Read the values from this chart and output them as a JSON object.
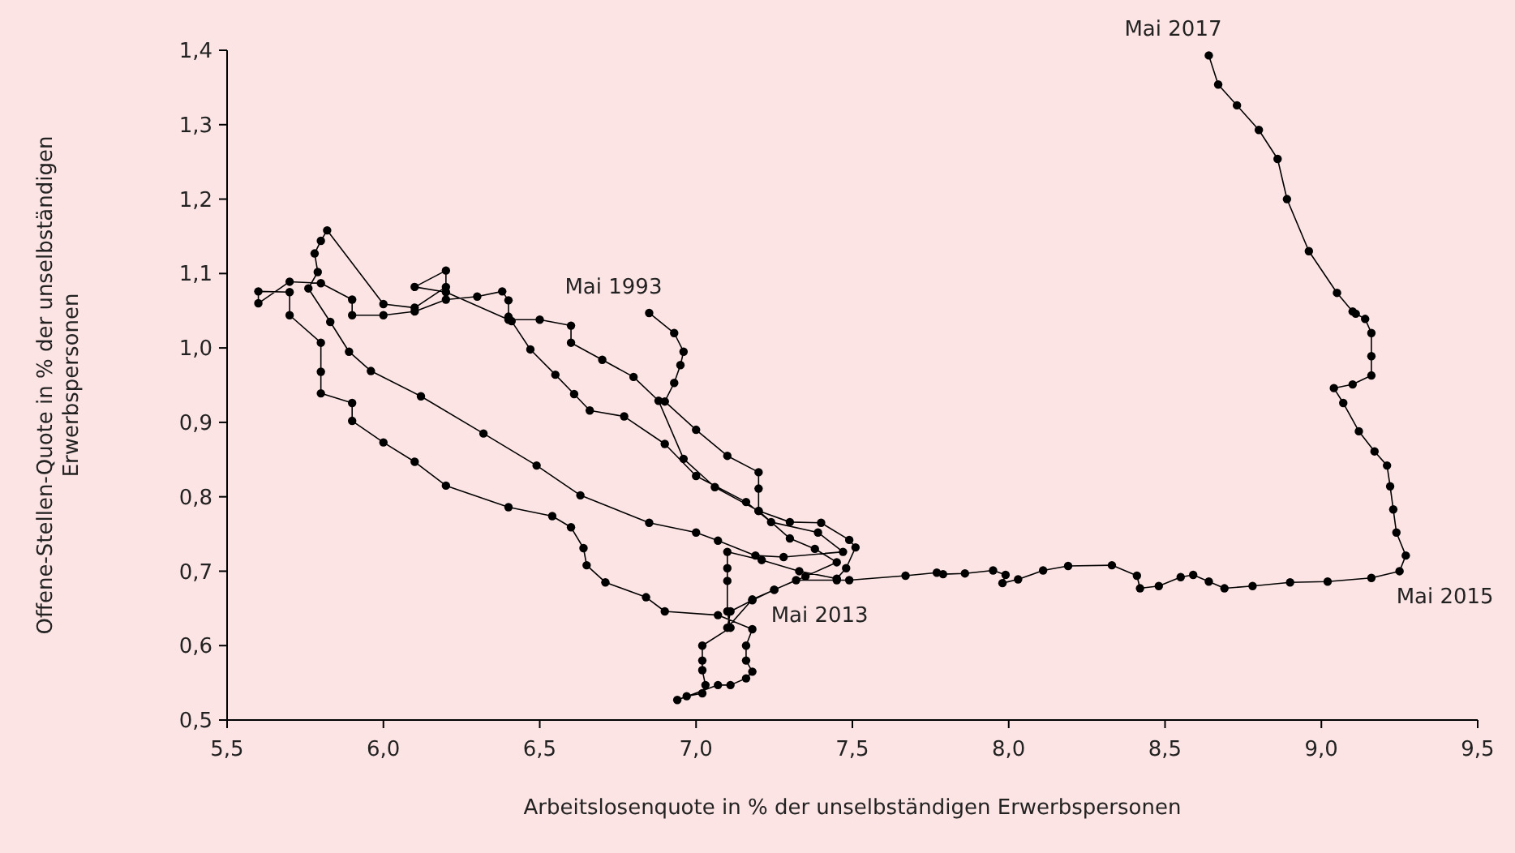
{
  "chart_data": {
    "type": "line",
    "marker": "circle",
    "line_style": "solid",
    "grid": false,
    "xlabel": "Arbeitslosenquote in % der unselbständigen Erwerbspersonen",
    "ylabel": "Offene-Stellen-Quote in % der unselbständigen Erwerbspersonen",
    "xlim": [
      5.5,
      9.5
    ],
    "ylim": [
      0.5,
      1.4
    ],
    "xticks": [
      {
        "value": 5.5,
        "label": "5,5"
      },
      {
        "value": 6.0,
        "label": "6,0"
      },
      {
        "value": 6.5,
        "label": "6,5"
      },
      {
        "value": 7.0,
        "label": "7,0"
      },
      {
        "value": 7.5,
        "label": "7,5"
      },
      {
        "value": 8.0,
        "label": "8,0"
      },
      {
        "value": 8.5,
        "label": "8,5"
      },
      {
        "value": 9.0,
        "label": "9,0"
      },
      {
        "value": 9.5,
        "label": "9,5"
      }
    ],
    "yticks": [
      {
        "value": 0.5,
        "label": "0,5"
      },
      {
        "value": 0.6,
        "label": "0,6"
      },
      {
        "value": 0.7,
        "label": "0,7"
      },
      {
        "value": 0.8,
        "label": "0,8"
      },
      {
        "value": 0.9,
        "label": "0,9"
      },
      {
        "value": 1.0,
        "label": "1,0"
      },
      {
        "value": 1.1,
        "label": "1,1"
      },
      {
        "value": 1.2,
        "label": "1,2"
      },
      {
        "value": 1.3,
        "label": "1,3"
      },
      {
        "value": 1.4,
        "label": "1,4"
      }
    ],
    "annotations": [
      {
        "text": "Mai 1993",
        "x": 6.85,
        "y": 1.047
      },
      {
        "text": "Mai 2013",
        "x": 7.25,
        "y": 0.675
      },
      {
        "text": "Mai 2015",
        "x": 9.25,
        "y": 0.7
      },
      {
        "text": "Mai 2017",
        "x": 8.64,
        "y": 1.393
      }
    ],
    "series": [
      {
        "color": "#000000",
        "x": [
          6.85,
          6.93,
          6.96,
          6.95,
          6.93,
          6.9,
          7.0,
          7.1,
          7.2,
          7.2,
          7.2,
          7.3,
          7.4,
          7.49,
          7.51,
          7.48,
          7.45,
          7.33,
          7.21,
          7.1,
          7.1,
          7.1,
          7.1,
          7.11,
          7.02,
          7.02,
          7.02,
          7.03,
          7.02,
          6.97,
          6.94,
          7.07,
          7.11,
          7.16,
          7.18,
          7.16,
          7.16,
          7.18,
          7.07,
          6.9,
          6.84,
          6.71,
          6.65,
          6.64,
          6.6,
          6.54,
          6.4,
          6.2,
          6.1,
          6.0,
          5.9,
          5.9,
          5.8,
          5.8,
          5.8,
          5.7,
          5.7,
          5.6,
          5.6,
          5.7,
          5.8,
          5.9,
          5.9,
          6.0,
          6.1,
          6.2,
          6.3,
          6.38,
          6.4,
          6.4,
          6.41,
          6.47,
          6.55,
          6.61,
          6.66,
          6.77,
          6.9,
          7.0,
          7.16,
          7.24,
          7.39,
          7.47,
          7.28,
          7.19,
          7.07,
          7.0,
          6.85,
          6.63,
          6.49,
          6.32,
          6.12,
          5.96,
          5.89,
          5.83,
          5.76,
          5.79,
          5.78,
          5.8,
          5.82,
          6.0,
          6.1,
          6.2,
          6.2,
          6.1,
          6.2,
          6.4,
          6.5,
          6.6,
          6.6,
          6.7,
          6.8,
          6.88,
          6.96,
          7.06,
          7.2,
          7.3,
          7.38,
          7.45,
          7.35,
          7.25,
          7.18,
          7.11,
          7.1,
          7.18,
          7.25,
          7.32,
          7.45,
          7.49,
          7.67,
          7.77,
          7.79,
          7.86,
          7.95,
          7.99,
          7.98,
          8.03,
          8.11,
          8.19,
          8.33,
          8.41,
          8.42,
          8.48,
          8.55,
          8.59,
          8.64,
          8.69,
          8.78,
          8.9,
          9.02,
          9.16,
          9.25,
          9.27,
          9.24,
          9.23,
          9.22,
          9.21,
          9.17,
          9.12,
          9.07,
          9.04,
          9.1,
          9.16,
          9.16,
          9.16,
          9.14,
          9.11,
          9.1,
          9.05,
          8.96,
          8.89,
          8.86,
          8.8,
          8.73,
          8.67,
          8.64
        ],
        "values": [
          1.047,
          1.02,
          0.995,
          0.977,
          0.953,
          0.928,
          0.89,
          0.855,
          0.833,
          0.811,
          0.781,
          0.766,
          0.765,
          0.742,
          0.732,
          0.704,
          0.69,
          0.7,
          0.715,
          0.726,
          0.704,
          0.687,
          0.646,
          0.624,
          0.6,
          0.58,
          0.567,
          0.547,
          0.536,
          0.532,
          0.527,
          0.547,
          0.547,
          0.556,
          0.565,
          0.58,
          0.6,
          0.622,
          0.641,
          0.646,
          0.665,
          0.685,
          0.708,
          0.731,
          0.759,
          0.774,
          0.786,
          0.815,
          0.847,
          0.873,
          0.902,
          0.926,
          0.939,
          0.968,
          1.007,
          1.044,
          1.075,
          1.076,
          1.06,
          1.089,
          1.087,
          1.065,
          1.044,
          1.044,
          1.049,
          1.065,
          1.069,
          1.076,
          1.064,
          1.042,
          1.036,
          0.998,
          0.964,
          0.938,
          0.916,
          0.908,
          0.871,
          0.828,
          0.793,
          0.766,
          0.752,
          0.726,
          0.719,
          0.721,
          0.741,
          0.752,
          0.765,
          0.802,
          0.842,
          0.885,
          0.935,
          0.969,
          0.995,
          1.035,
          1.08,
          1.102,
          1.127,
          1.144,
          1.158,
          1.059,
          1.054,
          1.082,
          1.104,
          1.082,
          1.075,
          1.038,
          1.038,
          1.03,
          1.007,
          0.984,
          0.961,
          0.929,
          0.851,
          0.813,
          0.781,
          0.744,
          0.73,
          0.712,
          0.693,
          0.675,
          0.661,
          0.646,
          0.624,
          0.662,
          0.675,
          0.688,
          0.688,
          0.688,
          0.694,
          0.698,
          0.696,
          0.697,
          0.701,
          0.695,
          0.684,
          0.689,
          0.701,
          0.707,
          0.708,
          0.694,
          0.677,
          0.68,
          0.692,
          0.695,
          0.686,
          0.677,
          0.68,
          0.685,
          0.686,
          0.691,
          0.7,
          0.721,
          0.752,
          0.783,
          0.814,
          0.842,
          0.861,
          0.888,
          0.926,
          0.946,
          0.951,
          0.963,
          0.989,
          1.02,
          1.039,
          1.046,
          1.049,
          1.074,
          1.13,
          1.2,
          1.254,
          1.293,
          1.326,
          1.354,
          1.393
        ]
      }
    ]
  }
}
